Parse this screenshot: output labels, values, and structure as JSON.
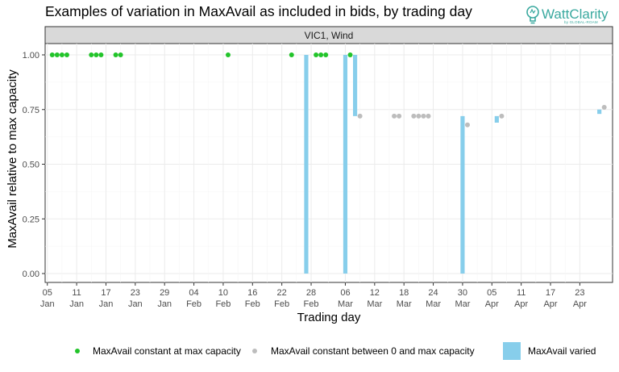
{
  "header": {
    "brand_name": "WattClarity",
    "brand_tagline": "by GLOBAL-ROAM",
    "brand_icon": "lightbulb-icon",
    "brand_color": "#3aa99f"
  },
  "chart_data": {
    "type": "scatter",
    "title": "Examples of variation in MaxAvail as included in bids, by trading day",
    "facet_label": "VIC1, Wind",
    "xlabel": "Trading day",
    "ylabel": "MaxAvail relative to max capacity",
    "ylim": [
      0,
      1
    ],
    "xlim": [
      "2024-01-05",
      "2024-04-29"
    ],
    "grid": true,
    "legend_position": "bottom",
    "y_ticks": [
      "0.00",
      "0.25",
      "0.50",
      "0.75",
      "1.00"
    ],
    "x_ticks": [
      {
        "date": "2024-01-05",
        "label": [
          "05",
          "Jan"
        ]
      },
      {
        "date": "2024-01-11",
        "label": [
          "11",
          "Jan"
        ]
      },
      {
        "date": "2024-01-17",
        "label": [
          "17",
          "Jan"
        ]
      },
      {
        "date": "2024-01-23",
        "label": [
          "23",
          "Jan"
        ]
      },
      {
        "date": "2024-01-29",
        "label": [
          "29",
          "Jan"
        ]
      },
      {
        "date": "2024-02-04",
        "label": [
          "04",
          "Feb"
        ]
      },
      {
        "date": "2024-02-10",
        "label": [
          "10",
          "Feb"
        ]
      },
      {
        "date": "2024-02-16",
        "label": [
          "16",
          "Feb"
        ]
      },
      {
        "date": "2024-02-22",
        "label": [
          "22",
          "Feb"
        ]
      },
      {
        "date": "2024-02-28",
        "label": [
          "28",
          "Feb"
        ]
      },
      {
        "date": "2024-03-06",
        "label": [
          "06",
          "Mar"
        ]
      },
      {
        "date": "2024-03-12",
        "label": [
          "12",
          "Mar"
        ]
      },
      {
        "date": "2024-03-18",
        "label": [
          "18",
          "Mar"
        ]
      },
      {
        "date": "2024-03-24",
        "label": [
          "24",
          "Mar"
        ]
      },
      {
        "date": "2024-03-30",
        "label": [
          "30",
          "Mar"
        ]
      },
      {
        "date": "2024-04-05",
        "label": [
          "05",
          "Apr"
        ]
      },
      {
        "date": "2024-04-11",
        "label": [
          "11",
          "Apr"
        ]
      },
      {
        "date": "2024-04-17",
        "label": [
          "17",
          "Apr"
        ]
      },
      {
        "date": "2024-04-23",
        "label": [
          "23",
          "Apr"
        ]
      }
    ],
    "series": [
      {
        "name": "MaxAvail constant at max capacity",
        "kind": "point",
        "color": "#22c42a",
        "points": [
          {
            "x": "2024-01-06",
            "y": 1.0
          },
          {
            "x": "2024-01-07",
            "y": 1.0
          },
          {
            "x": "2024-01-08",
            "y": 1.0
          },
          {
            "x": "2024-01-09",
            "y": 1.0
          },
          {
            "x": "2024-01-14",
            "y": 1.0
          },
          {
            "x": "2024-01-15",
            "y": 1.0
          },
          {
            "x": "2024-01-16",
            "y": 1.0
          },
          {
            "x": "2024-01-19",
            "y": 1.0
          },
          {
            "x": "2024-01-20",
            "y": 1.0
          },
          {
            "x": "2024-02-11",
            "y": 1.0
          },
          {
            "x": "2024-02-24",
            "y": 1.0
          },
          {
            "x": "2024-02-29",
            "y": 1.0
          },
          {
            "x": "2024-03-01",
            "y": 1.0
          },
          {
            "x": "2024-03-02",
            "y": 1.0
          },
          {
            "x": "2024-03-07",
            "y": 1.0
          }
        ]
      },
      {
        "name": "MaxAvail constant between 0 and max capacity",
        "kind": "point",
        "color": "#bdbdbd",
        "points": [
          {
            "x": "2024-03-09",
            "y": 0.72
          },
          {
            "x": "2024-03-16",
            "y": 0.72
          },
          {
            "x": "2024-03-17",
            "y": 0.72
          },
          {
            "x": "2024-03-20",
            "y": 0.72
          },
          {
            "x": "2024-03-21",
            "y": 0.72
          },
          {
            "x": "2024-03-22",
            "y": 0.72
          },
          {
            "x": "2024-03-23",
            "y": 0.72
          },
          {
            "x": "2024-03-31",
            "y": 0.68
          },
          {
            "x": "2024-04-07",
            "y": 0.72
          },
          {
            "x": "2024-04-28",
            "y": 0.76
          }
        ]
      },
      {
        "name": "MaxAvail varied",
        "kind": "range",
        "color": "#87ceeb",
        "ranges": [
          {
            "x": "2024-02-27",
            "ymin": 0.0,
            "ymax": 1.0
          },
          {
            "x": "2024-03-06",
            "ymin": 0.0,
            "ymax": 1.0
          },
          {
            "x": "2024-03-08",
            "ymin": 0.72,
            "ymax": 1.0
          },
          {
            "x": "2024-03-30",
            "ymin": 0.0,
            "ymax": 0.72
          },
          {
            "x": "2024-04-06",
            "ymin": 0.69,
            "ymax": 0.72
          },
          {
            "x": "2024-04-27",
            "ymin": 0.73,
            "ymax": 0.75
          }
        ]
      }
    ]
  }
}
